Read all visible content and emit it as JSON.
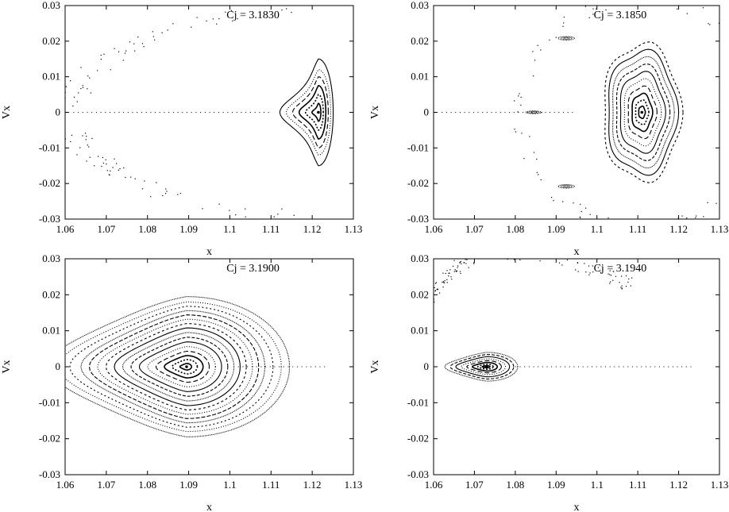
{
  "figure": {
    "background": "#ffffff",
    "ink": "#000000"
  },
  "chart_data": [
    {
      "type": "scatter",
      "title": "Cj = 3.1830",
      "xlabel": "x",
      "ylabel": "Vx",
      "xlim": [
        1.06,
        1.13
      ],
      "ylim": [
        -0.03,
        0.03
      ],
      "xticks": [
        "1.06",
        "1.07",
        "1.08",
        "1.09",
        "1.1",
        "1.11",
        "1.12",
        "1.13"
      ],
      "yticks": [
        "0.03",
        "0.02",
        "0.01",
        "0",
        "-0.01",
        "-0.02",
        "-0.03"
      ],
      "grid": false,
      "islands": [
        {
          "cx": 1.1215,
          "cy": 0.0,
          "rxs": [
            0.0006,
            0.0012,
            0.0018,
            0.0024,
            0.003,
            0.0036
          ],
          "rys": [
            0.0025,
            0.005,
            0.0075,
            0.01,
            0.012,
            0.015
          ],
          "shape": "arrow"
        }
      ],
      "scatter_arcs": [
        {
          "cx": 1.1215,
          "cy": 0.0,
          "rx": 0.06,
          "ry": 0.029,
          "from": 95,
          "to": 265
        }
      ],
      "axis_line": {
        "y": 0.0,
        "x_from": 1.062,
        "x_to": 1.11
      }
    },
    {
      "type": "scatter",
      "title": "Cj = 3.1850",
      "xlabel": "x",
      "ylabel": "Vx",
      "xlim": [
        1.06,
        1.13
      ],
      "ylim": [
        -0.03,
        0.03
      ],
      "xticks": [
        "1.06",
        "1.07",
        "1.08",
        "1.09",
        "1.1",
        "1.11",
        "1.12",
        "1.13"
      ],
      "yticks": [
        "0.03",
        "0.02",
        "0.01",
        "0",
        "-0.01",
        "-0.02",
        "-0.03"
      ],
      "grid": false,
      "islands": [
        {
          "cx": 1.111,
          "cy": 0.0,
          "rxs": [
            0.0008,
            0.0016,
            0.0025,
            0.0035,
            0.0045,
            0.0055,
            0.0065,
            0.0075,
            0.0085,
            0.0095
          ],
          "rys": [
            0.0017,
            0.0034,
            0.0052,
            0.0072,
            0.0092,
            0.0112,
            0.0132,
            0.0152,
            0.0172,
            0.0192
          ],
          "shape": "pentagon"
        }
      ],
      "small_islands": [
        {
          "cx": 1.0845,
          "cy": 0.0,
          "rx": 0.002,
          "ry": 0.0004
        },
        {
          "cx": 1.0925,
          "cy": 0.0208,
          "rx": 0.002,
          "ry": 0.0005
        },
        {
          "cx": 1.0925,
          "cy": -0.0208,
          "rx": 0.002,
          "ry": 0.0005
        }
      ],
      "scatter_arcs": [
        {
          "cx": 1.111,
          "cy": 0.0,
          "rx": 0.03,
          "ry": 0.032,
          "from": 0,
          "to": 360
        }
      ],
      "axis_line": {
        "y": 0.0,
        "x_from": 1.062,
        "x_to": 1.095
      }
    },
    {
      "type": "scatter",
      "title": "Cj = 3.1900",
      "xlabel": "x",
      "ylabel": "Vx",
      "xlim": [
        1.06,
        1.13
      ],
      "ylim": [
        -0.03,
        0.03
      ],
      "xticks": [
        "1.06",
        "1.07",
        "1.08",
        "1.09",
        "1.1",
        "1.11",
        "1.12",
        "1.13"
      ],
      "yticks": [
        "0.03",
        "0.02",
        "0.01",
        "0",
        "-0.01",
        "-0.02",
        "-0.03"
      ],
      "grid": false,
      "islands": [
        {
          "cx": 1.0895,
          "cy": 0.0,
          "rxs": [
            0.0012,
            0.0026,
            0.004,
            0.0055,
            0.007,
            0.0085,
            0.01,
            0.0115,
            0.013,
            0.0145,
            0.016,
            0.0175,
            0.019,
            0.021,
            0.023,
            0.025
          ],
          "rys": [
            0.0009,
            0.002,
            0.0031,
            0.0043,
            0.0056,
            0.0069,
            0.0082,
            0.0095,
            0.0108,
            0.012,
            0.0132,
            0.0144,
            0.0156,
            0.0168,
            0.018,
            0.0195
          ],
          "shape": "teardrop"
        }
      ],
      "axis_line": {
        "y": 0.0,
        "x_from": 1.102,
        "x_to": 1.123
      }
    },
    {
      "type": "scatter",
      "title": "Cj = 3.1940",
      "xlabel": "x",
      "ylabel": "Vx",
      "xlim": [
        1.06,
        1.13
      ],
      "ylim": [
        -0.03,
        0.03
      ],
      "xticks": [
        "1.06",
        "1.07",
        "1.08",
        "1.09",
        "1.1",
        "1.11",
        "1.12",
        "1.13"
      ],
      "yticks": [
        "0.03",
        "0.02",
        "0.01",
        "0",
        "-0.01",
        "-0.02",
        "-0.03"
      ],
      "grid": false,
      "islands": [
        {
          "cx": 1.073,
          "cy": 0.0,
          "rxs": [
            0.0008,
            0.0016,
            0.0026,
            0.0036,
            0.0046,
            0.0056,
            0.0066,
            0.0076
          ],
          "rys": [
            0.0003,
            0.0007,
            0.0012,
            0.0017,
            0.0022,
            0.0028,
            0.0034,
            0.004
          ],
          "shape": "teardrop"
        }
      ],
      "scatter_arcs": [
        {
          "cx": 1.073,
          "cy": 0.0,
          "rx": 0.018,
          "ry": 0.03,
          "from": 100,
          "to": 175
        },
        {
          "cx": 1.073,
          "cy": 0.0,
          "rx": 0.05,
          "ry": 0.032,
          "from": 45,
          "to": 120
        }
      ],
      "axis_line": {
        "y": 0.0,
        "x_from": 1.08,
        "x_to": 1.123
      }
    }
  ]
}
